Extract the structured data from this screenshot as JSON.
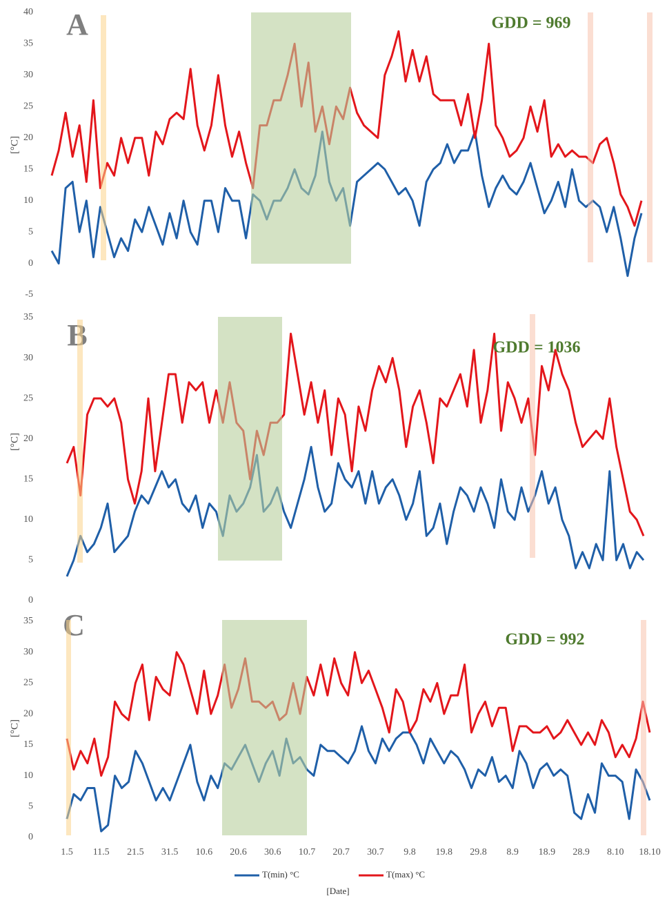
{
  "chart_data": [
    {
      "type": "line",
      "label": "A",
      "annotation": "GDD = 969",
      "ylabel": "[°C]",
      "ylim": [
        -5,
        40
      ],
      "yticks": [
        -5,
        0,
        5,
        10,
        15,
        20,
        25,
        30,
        35,
        40
      ],
      "series": [
        {
          "color": "#1f5fa8",
          "values": [
            2,
            0,
            12,
            13,
            5,
            10,
            1,
            9,
            5,
            1,
            4,
            2,
            7,
            5,
            9,
            6,
            3,
            8,
            4,
            10,
            5,
            3,
            10,
            10,
            5,
            12,
            10,
            10,
            4,
            11,
            10,
            7,
            10,
            10,
            12,
            15,
            12,
            11,
            14,
            21,
            13,
            10,
            12,
            6,
            13,
            14,
            15,
            16,
            15,
            13,
            11,
            12,
            10,
            6,
            13,
            15,
            16,
            19,
            16,
            18,
            18,
            21,
            14,
            9,
            12,
            14,
            12,
            11,
            13,
            16,
            12,
            8,
            10,
            13,
            9,
            15,
            10,
            9,
            10,
            9,
            5,
            9,
            4,
            -2,
            4,
            8
          ]
        },
        {
          "color": "#e3161b",
          "values": [
            14,
            18,
            24,
            17,
            22,
            13,
            26,
            12,
            16,
            14,
            20,
            16,
            20,
            20,
            14,
            21,
            19,
            23,
            24,
            23,
            31,
            22,
            18,
            22,
            30,
            22,
            17,
            21,
            16,
            12,
            22,
            22,
            26,
            26,
            30,
            35,
            25,
            32,
            21,
            25,
            19,
            25,
            23,
            28,
            24,
            22,
            21,
            20,
            30,
            33,
            37,
            29,
            34,
            29,
            33,
            27,
            26,
            26,
            26,
            22,
            27,
            20,
            26,
            35,
            22,
            20,
            17,
            18,
            20,
            25,
            21,
            26,
            17,
            19,
            17,
            18,
            17,
            17,
            16,
            19,
            20,
            16,
            11,
            9,
            6,
            10
          ]
        }
      ]
    },
    {
      "type": "line",
      "label": "B",
      "annotation": "GDD = 1036",
      "ylabel": "[°C]",
      "ylim": [
        0,
        35
      ],
      "yticks": [
        0,
        5,
        10,
        15,
        20,
        25,
        30,
        35
      ],
      "series": [
        {
          "color": "#1f5fa8",
          "values": [
            3,
            5,
            8,
            6,
            7,
            9,
            12,
            6,
            7,
            8,
            11,
            13,
            12,
            14,
            16,
            14,
            15,
            12,
            11,
            13,
            9,
            12,
            11,
            8,
            13,
            11,
            12,
            14,
            18,
            11,
            12,
            14,
            11,
            9,
            12,
            15,
            19,
            14,
            11,
            12,
            17,
            15,
            14,
            16,
            12,
            16,
            12,
            14,
            15,
            13,
            10,
            12,
            16,
            8,
            9,
            12,
            7,
            11,
            14,
            13,
            11,
            14,
            12,
            9,
            15,
            11,
            10,
            14,
            11,
            13,
            16,
            12,
            14,
            10,
            8,
            4,
            6,
            4,
            7,
            5,
            16,
            5,
            7,
            4,
            6,
            5
          ]
        },
        {
          "color": "#e3161b",
          "values": [
            17,
            19,
            13,
            23,
            25,
            25,
            24,
            25,
            22,
            15,
            12,
            16,
            25,
            16,
            22,
            28,
            28,
            22,
            27,
            26,
            27,
            22,
            26,
            22,
            27,
            22,
            21,
            15,
            21,
            18,
            22,
            22,
            23,
            33,
            28,
            23,
            27,
            22,
            26,
            18,
            25,
            23,
            16,
            24,
            21,
            26,
            29,
            27,
            30,
            26,
            19,
            24,
            26,
            22,
            17,
            25,
            24,
            26,
            28,
            24,
            31,
            22,
            26,
            33,
            21,
            27,
            25,
            22,
            25,
            18,
            29,
            26,
            31,
            28,
            26,
            22,
            19,
            20,
            21,
            20,
            25,
            19,
            15,
            11,
            10,
            8
          ]
        }
      ]
    },
    {
      "type": "line",
      "label": "C",
      "annotation": "GDD = 992",
      "ylabel": "[°C]",
      "xlabel": "[Date]",
      "ylim": [
        0,
        35
      ],
      "yticks": [
        0,
        5,
        10,
        15,
        20,
        25,
        30,
        35
      ],
      "categories": [
        "1.5",
        null,
        null,
        null,
        null,
        "11.5",
        null,
        null,
        null,
        null,
        "21.5",
        null,
        null,
        null,
        null,
        "31.5",
        null,
        null,
        null,
        null,
        "10.6",
        null,
        null,
        null,
        null,
        "20.6",
        null,
        null,
        null,
        null,
        "30.6",
        null,
        null,
        null,
        null,
        "10.7",
        null,
        null,
        null,
        null,
        "20.7",
        null,
        null,
        null,
        null,
        "30.7",
        null,
        null,
        null,
        null,
        "9.8",
        null,
        null,
        null,
        null,
        "19.8",
        null,
        null,
        null,
        null,
        "29.8",
        null,
        null,
        null,
        null,
        "8.9",
        null,
        null,
        null,
        null,
        "18.9",
        null,
        null,
        null,
        null,
        "28.9",
        null,
        null,
        null,
        null,
        "8.10",
        null,
        null,
        null,
        null,
        "18.10"
      ],
      "series": [
        {
          "name": "T(min) °C",
          "color": "#1f5fa8",
          "values": [
            3,
            7,
            6,
            8,
            8,
            1,
            2,
            10,
            8,
            9,
            14,
            12,
            9,
            6,
            8,
            6,
            9,
            12,
            15,
            9,
            6,
            10,
            8,
            12,
            11,
            13,
            15,
            12,
            9,
            12,
            14,
            10,
            16,
            12,
            13,
            11,
            10,
            15,
            14,
            14,
            13,
            12,
            14,
            18,
            14,
            12,
            16,
            14,
            16,
            17,
            17,
            15,
            12,
            16,
            14,
            12,
            14,
            13,
            11,
            8,
            11,
            10,
            13,
            9,
            10,
            8,
            14,
            12,
            8,
            11,
            12,
            10,
            11,
            10,
            4,
            3,
            7,
            4,
            12,
            10,
            10,
            9,
            3,
            11,
            9,
            6
          ]
        },
        {
          "name": "T(max)  °C",
          "color": "#e3161b",
          "values": [
            16,
            11,
            14,
            12,
            16,
            10,
            13,
            22,
            20,
            19,
            25,
            28,
            19,
            26,
            24,
            23,
            30,
            28,
            24,
            20,
            27,
            20,
            23,
            28,
            21,
            24,
            29,
            22,
            22,
            21,
            22,
            19,
            20,
            25,
            20,
            26,
            23,
            28,
            23,
            29,
            25,
            23,
            30,
            25,
            27,
            24,
            21,
            17,
            24,
            22,
            17,
            19,
            24,
            22,
            25,
            20,
            23,
            23,
            28,
            17,
            20,
            22,
            18,
            21,
            21,
            14,
            18,
            18,
            17,
            17,
            18,
            16,
            17,
            19,
            17,
            15,
            17,
            15,
            19,
            17,
            13,
            15,
            13,
            16,
            22,
            17
          ]
        }
      ]
    }
  ]
}
